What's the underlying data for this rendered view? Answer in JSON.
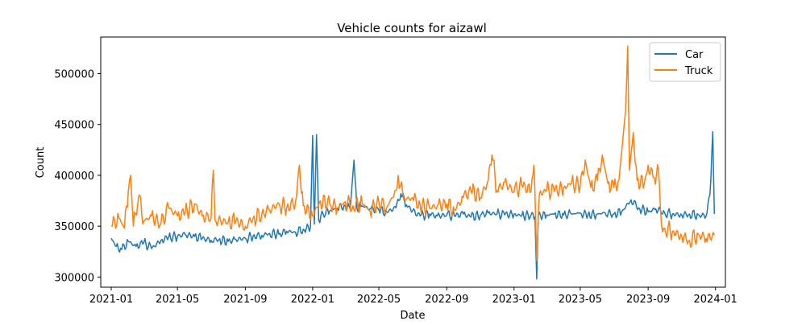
{
  "chart_data": {
    "type": "line",
    "title": "Vehicle counts for aizawl",
    "xlabel": "Date",
    "ylabel": "Count",
    "xlim": [
      "2020-12-13",
      "2024-01-19"
    ],
    "ylim": [
      290000,
      536000
    ],
    "x_ticks": [
      "2021-01",
      "2021-05",
      "2021-09",
      "2022-01",
      "2022-05",
      "2022-09",
      "2023-01",
      "2023-05",
      "2023-09",
      "2024-01"
    ],
    "y_ticks": [
      300000,
      350000,
      400000,
      450000,
      500000
    ],
    "grid": false,
    "legend_position": "top-right",
    "series": [
      {
        "name": "Car",
        "color": "#1f77b4",
        "points": [
          [
            "2021-01-01",
            338000
          ],
          [
            "2021-01-10",
            330000
          ],
          [
            "2021-01-20",
            327000
          ],
          [
            "2021-02-01",
            335000
          ],
          [
            "2021-02-15",
            330000
          ],
          [
            "2021-03-01",
            334000
          ],
          [
            "2021-03-15",
            328000
          ],
          [
            "2021-04-01",
            336000
          ],
          [
            "2021-04-15",
            339000
          ],
          [
            "2021-05-01",
            340000
          ],
          [
            "2021-05-15",
            342000
          ],
          [
            "2021-06-01",
            340000
          ],
          [
            "2021-06-15",
            338000
          ],
          [
            "2021-07-01",
            336000
          ],
          [
            "2021-07-15",
            337000
          ],
          [
            "2021-08-01",
            335000
          ],
          [
            "2021-08-15",
            337000
          ],
          [
            "2021-09-01",
            338000
          ],
          [
            "2021-09-15",
            340000
          ],
          [
            "2021-10-01",
            341000
          ],
          [
            "2021-10-15",
            343000
          ],
          [
            "2021-11-01",
            342000
          ],
          [
            "2021-11-15",
            345000
          ],
          [
            "2021-12-01",
            344000
          ],
          [
            "2021-12-15",
            347000
          ],
          [
            "2021-12-28",
            349000
          ],
          [
            "2022-01-01",
            439000
          ],
          [
            "2022-01-04",
            352000
          ],
          [
            "2022-01-08",
            440000
          ],
          [
            "2022-01-12",
            356000
          ],
          [
            "2022-01-20",
            362000
          ],
          [
            "2022-02-01",
            365000
          ],
          [
            "2022-02-15",
            368000
          ],
          [
            "2022-03-01",
            370000
          ],
          [
            "2022-03-10",
            367000
          ],
          [
            "2022-03-17",
            415000
          ],
          [
            "2022-03-22",
            368000
          ],
          [
            "2022-04-01",
            370000
          ],
          [
            "2022-04-15",
            367000
          ],
          [
            "2022-05-01",
            366000
          ],
          [
            "2022-05-15",
            364000
          ],
          [
            "2022-06-01",
            368000
          ],
          [
            "2022-06-10",
            382000
          ],
          [
            "2022-06-20",
            371000
          ],
          [
            "2022-07-01",
            365000
          ],
          [
            "2022-07-15",
            360000
          ],
          [
            "2022-08-01",
            362000
          ],
          [
            "2022-08-15",
            360000
          ],
          [
            "2022-09-01",
            361000
          ],
          [
            "2022-09-15",
            360000
          ],
          [
            "2022-10-01",
            362000
          ],
          [
            "2022-10-15",
            359000
          ],
          [
            "2022-11-01",
            361000
          ],
          [
            "2022-11-15",
            363000
          ],
          [
            "2022-12-01",
            362000
          ],
          [
            "2022-12-15",
            361000
          ],
          [
            "2023-01-01",
            362000
          ],
          [
            "2023-01-15",
            360000
          ],
          [
            "2023-02-01",
            361000
          ],
          [
            "2023-02-08",
            359000
          ],
          [
            "2023-02-11",
            298000
          ],
          [
            "2023-02-14",
            360000
          ],
          [
            "2023-03-01",
            361000
          ],
          [
            "2023-03-15",
            362000
          ],
          [
            "2023-04-01",
            361000
          ],
          [
            "2023-04-15",
            362000
          ],
          [
            "2023-05-01",
            363000
          ],
          [
            "2023-05-15",
            361000
          ],
          [
            "2023-06-01",
            362000
          ],
          [
            "2023-06-15",
            363000
          ],
          [
            "2023-07-01",
            362000
          ],
          [
            "2023-07-15",
            364000
          ],
          [
            "2023-08-01",
            376000
          ],
          [
            "2023-08-15",
            368000
          ],
          [
            "2023-09-01",
            364000
          ],
          [
            "2023-09-15",
            367000
          ],
          [
            "2023-10-01",
            363000
          ],
          [
            "2023-10-15",
            362000
          ],
          [
            "2023-11-01",
            361000
          ],
          [
            "2023-11-15",
            362000
          ],
          [
            "2023-12-01",
            361000
          ],
          [
            "2023-12-15",
            360000
          ],
          [
            "2023-12-22",
            381000
          ],
          [
            "2023-12-27",
            443000
          ],
          [
            "2023-12-30",
            362000
          ]
        ]
      },
      {
        "name": "Truck",
        "color": "#ff7f0e",
        "points": [
          [
            "2021-01-01",
            350000
          ],
          [
            "2021-01-15",
            358000
          ],
          [
            "2021-01-25",
            348000
          ],
          [
            "2021-02-01",
            384000
          ],
          [
            "2021-02-05",
            400000
          ],
          [
            "2021-02-10",
            350000
          ],
          [
            "2021-02-20",
            380000
          ],
          [
            "2021-03-01",
            355000
          ],
          [
            "2021-03-15",
            360000
          ],
          [
            "2021-04-01",
            352000
          ],
          [
            "2021-04-15",
            368000
          ],
          [
            "2021-05-01",
            360000
          ],
          [
            "2021-05-15",
            363000
          ],
          [
            "2021-06-01",
            372000
          ],
          [
            "2021-06-15",
            360000
          ],
          [
            "2021-07-01",
            358000
          ],
          [
            "2021-07-05",
            405000
          ],
          [
            "2021-07-08",
            356000
          ],
          [
            "2021-08-01",
            354000
          ],
          [
            "2021-08-15",
            355000
          ],
          [
            "2021-09-01",
            350000
          ],
          [
            "2021-09-15",
            358000
          ],
          [
            "2021-10-01",
            362000
          ],
          [
            "2021-10-15",
            366000
          ],
          [
            "2021-11-01",
            372000
          ],
          [
            "2021-11-15",
            368000
          ],
          [
            "2021-12-01",
            374000
          ],
          [
            "2021-12-08",
            410000
          ],
          [
            "2021-12-15",
            370000
          ],
          [
            "2022-01-01",
            360000
          ],
          [
            "2022-01-15",
            375000
          ],
          [
            "2022-02-01",
            372000
          ],
          [
            "2022-02-15",
            368000
          ],
          [
            "2022-03-01",
            374000
          ],
          [
            "2022-03-15",
            370000
          ],
          [
            "2022-04-01",
            372000
          ],
          [
            "2022-04-15",
            365000
          ],
          [
            "2022-05-01",
            374000
          ],
          [
            "2022-05-15",
            368000
          ],
          [
            "2022-06-01",
            385000
          ],
          [
            "2022-06-05",
            400000
          ],
          [
            "2022-06-15",
            376000
          ],
          [
            "2022-07-01",
            378000
          ],
          [
            "2022-07-15",
            370000
          ],
          [
            "2022-08-01",
            368000
          ],
          [
            "2022-08-15",
            370000
          ],
          [
            "2022-09-01",
            372000
          ],
          [
            "2022-09-15",
            366000
          ],
          [
            "2022-10-01",
            378000
          ],
          [
            "2022-10-15",
            385000
          ],
          [
            "2022-11-01",
            378000
          ],
          [
            "2022-11-15",
            395000
          ],
          [
            "2022-11-22",
            420000
          ],
          [
            "2022-12-01",
            385000
          ],
          [
            "2022-12-15",
            393000
          ],
          [
            "2023-01-01",
            384000
          ],
          [
            "2023-01-15",
            390000
          ],
          [
            "2023-02-01",
            385000
          ],
          [
            "2023-02-06",
            410000
          ],
          [
            "2023-02-11",
            316000
          ],
          [
            "2023-02-16",
            382000
          ],
          [
            "2023-03-01",
            385000
          ],
          [
            "2023-03-15",
            384000
          ],
          [
            "2023-04-01",
            388000
          ],
          [
            "2023-04-15",
            392000
          ],
          [
            "2023-05-01",
            390000
          ],
          [
            "2023-05-10",
            415000
          ],
          [
            "2023-05-20",
            388000
          ],
          [
            "2023-06-01",
            395000
          ],
          [
            "2023-06-10",
            420000
          ],
          [
            "2023-06-20",
            392000
          ],
          [
            "2023-07-01",
            388000
          ],
          [
            "2023-07-10",
            395000
          ],
          [
            "2023-07-22",
            463000
          ],
          [
            "2023-07-26",
            527000
          ],
          [
            "2023-07-29",
            405000
          ],
          [
            "2023-08-05",
            442000
          ],
          [
            "2023-08-12",
            395000
          ],
          [
            "2023-08-25",
            392000
          ],
          [
            "2023-09-01",
            410000
          ],
          [
            "2023-09-10",
            398000
          ],
          [
            "2023-09-20",
            403000
          ],
          [
            "2023-09-25",
            352000
          ],
          [
            "2023-10-01",
            348000
          ],
          [
            "2023-10-15",
            345000
          ],
          [
            "2023-11-01",
            340000
          ],
          [
            "2023-11-15",
            336000
          ],
          [
            "2023-12-01",
            342000
          ],
          [
            "2023-12-15",
            338000
          ],
          [
            "2023-12-30",
            341000
          ]
        ]
      }
    ]
  }
}
